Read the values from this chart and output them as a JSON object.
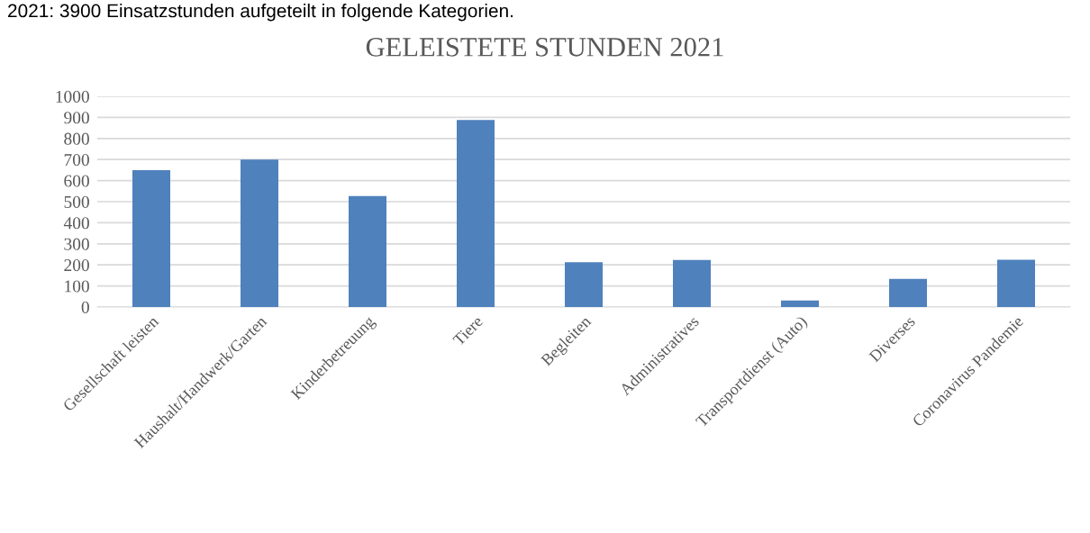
{
  "chart_data": {
    "type": "bar",
    "title": "GELEISTETE STUNDEN 2021",
    "annotations": [
      "2021: 3900 Einsatzstunden aufgeteilt in folgende Kategorien."
    ],
    "categories": [
      "Gesellschaft leisten",
      "Haushalt/Handwerk/Garten",
      "Kinderbetreuung",
      "Tiere",
      "Begleiten",
      "Administratives",
      "Transportdienst (Auto)",
      "Diverses",
      "Coronavirus Pandemie"
    ],
    "values": [
      650,
      700,
      527,
      888,
      213,
      223,
      31,
      134,
      224
    ],
    "color": "#4f81bd",
    "ylim": [
      0,
      1000
    ],
    "yticks": [
      0,
      100,
      200,
      300,
      400,
      500,
      600,
      700,
      800,
      900,
      1000
    ],
    "grid": "y",
    "legend": false
  }
}
